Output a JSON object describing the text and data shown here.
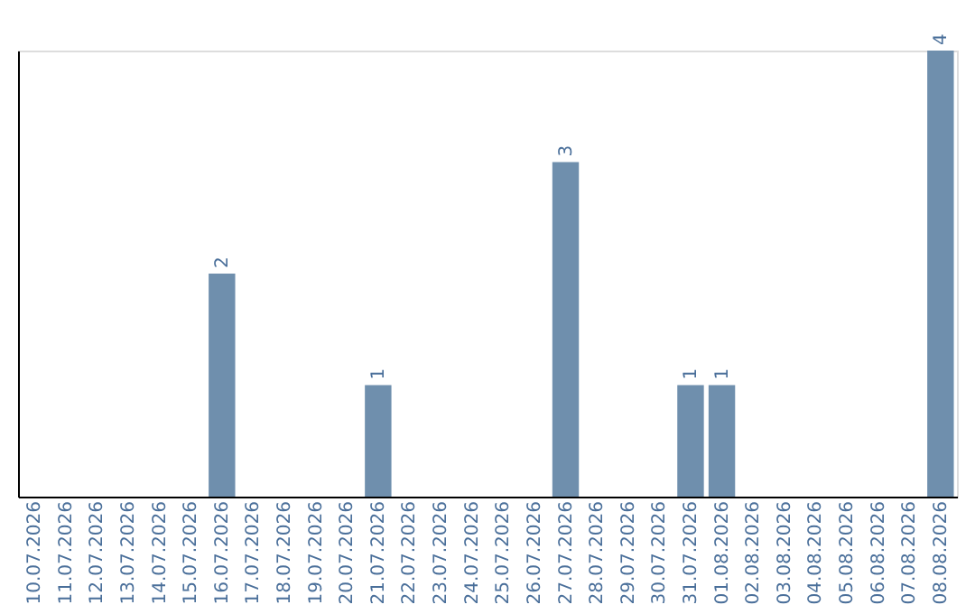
{
  "chart_data": {
    "type": "bar",
    "categories": [
      "10.07.2026",
      "11.07.2026",
      "12.07.2026",
      "13.07.2026",
      "14.07.2026",
      "15.07.2026",
      "16.07.2026",
      "17.07.2026",
      "18.07.2026",
      "19.07.2026",
      "20.07.2026",
      "21.07.2026",
      "22.07.2026",
      "23.07.2026",
      "24.07.2026",
      "25.07.2026",
      "26.07.2026",
      "27.07.2026",
      "28.07.2026",
      "29.07.2026",
      "30.07.2026",
      "31.07.2026",
      "01.08.2026",
      "02.08.2026",
      "03.08.2026",
      "04.08.2026",
      "05.08.2026",
      "06.08.2026",
      "07.08.2026",
      "08.08.2026"
    ],
    "values": [
      0,
      0,
      0,
      0,
      0,
      0,
      2,
      0,
      0,
      0,
      0,
      1,
      0,
      0,
      0,
      0,
      0,
      3,
      0,
      0,
      0,
      1,
      1,
      0,
      0,
      0,
      0,
      0,
      0,
      4
    ],
    "value_labels": [
      null,
      null,
      null,
      null,
      null,
      null,
      "2",
      null,
      null,
      null,
      null,
      "1",
      null,
      null,
      null,
      null,
      null,
      "3",
      null,
      null,
      null,
      "1",
      "1",
      null,
      null,
      null,
      null,
      null,
      null,
      "4"
    ],
    "color": "#6f8fad",
    "tick_labels": "x",
    "grid": false
  }
}
